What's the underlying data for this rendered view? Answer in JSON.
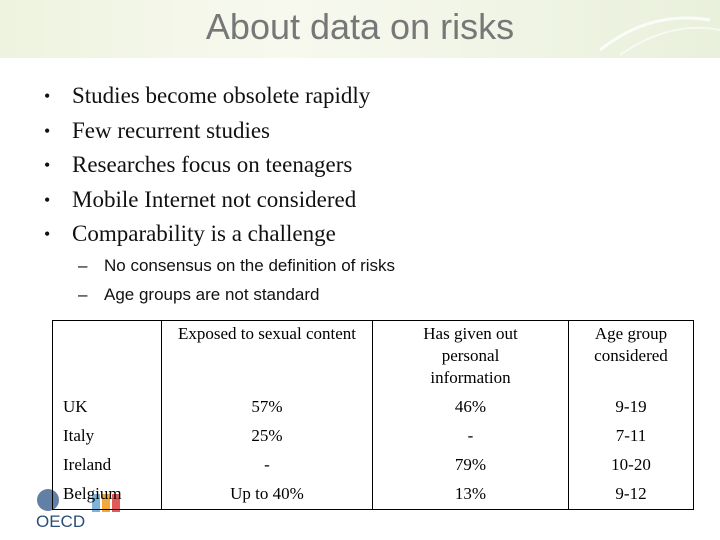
{
  "header": {
    "title": "About data on risks"
  },
  "bullets": [
    "Studies become obsolete rapidly",
    "Few recurrent studies",
    "Researches focus on teenagers",
    "Mobile Internet not considered",
    "Comparability is a challenge"
  ],
  "sub_bullets": [
    "No consensus on the definition of risks",
    "Age groups are not standard"
  ],
  "table": {
    "columns": [
      "Exposed  to sexual content",
      "Has given out personal information",
      "Age group considered"
    ],
    "rows": [
      [
        "UK",
        "57%",
        "46%",
        "9-19"
      ],
      [
        "Italy",
        "25%",
        "-",
        "7-11"
      ],
      [
        "Ireland",
        "-",
        "79%",
        "10-20"
      ],
      [
        "Belgium",
        "Up to 40%",
        "13%",
        "9-12"
      ]
    ]
  },
  "logo": "OECD"
}
